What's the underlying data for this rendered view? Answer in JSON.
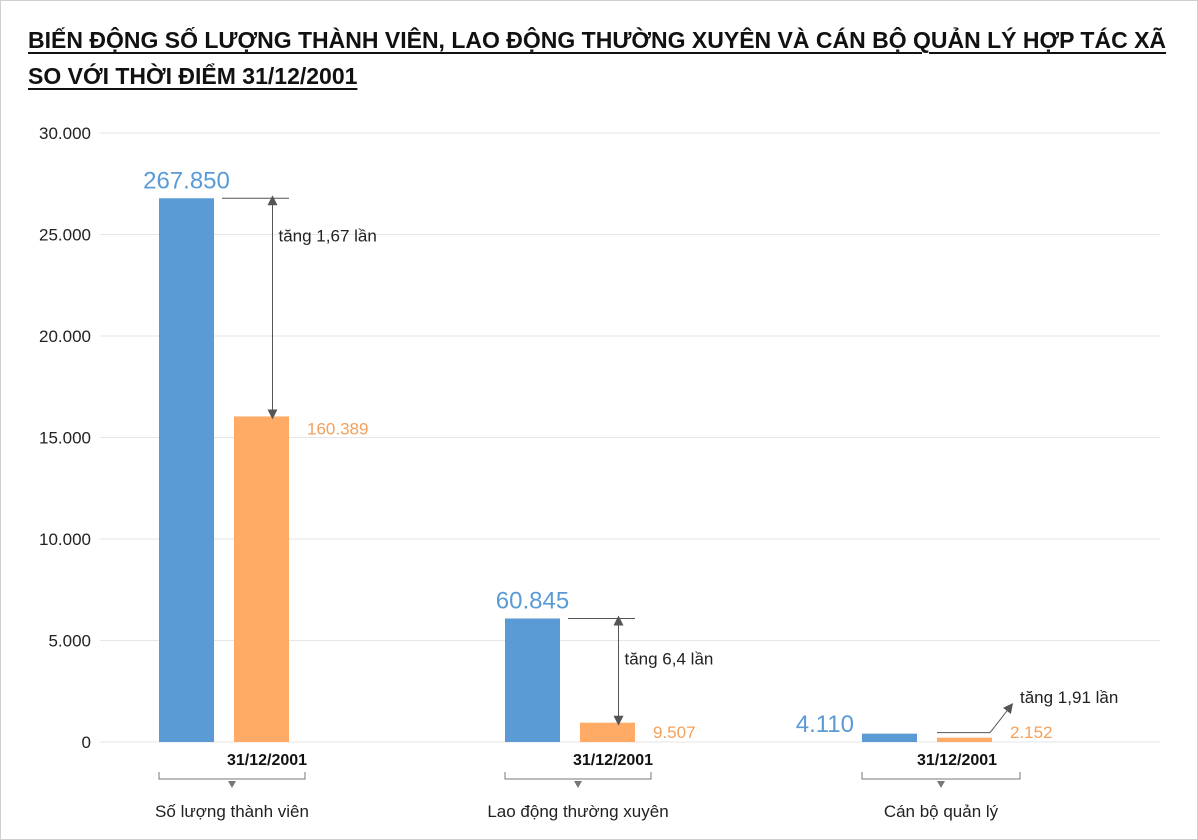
{
  "title_line1": "BIẾN ĐỘNG SỐ LƯỢNG THÀNH VIÊN, LAO ĐỘNG THƯỜNG XUYÊN VÀ CÁN BỘ QUẢN LÝ HỢP TÁC XÃ",
  "title_line2": "SO VỚI THỜI ĐIỂM 31/12/2001",
  "colors": {
    "current": "#5b9bd5",
    "baseline": "#ffab66",
    "arrow": "#555555"
  },
  "chart_data": {
    "type": "bar",
    "ylim": [
      0,
      30000
    ],
    "yticks": [
      0,
      5000,
      10000,
      15000,
      20000,
      25000,
      30000
    ],
    "ytick_labels": [
      "0",
      "5.000",
      "10.000",
      "15.000",
      "20.000",
      "25.000",
      "30.000"
    ],
    "grid": true,
    "groups": [
      {
        "category": "Số lượng thành viên",
        "current_value": 26785.0,
        "current_label": "267.850",
        "baseline_value": 16038.9,
        "baseline_label": "160.389",
        "baseline_date": "31/12/2001",
        "annotation": "tăng 1,67 lần"
      },
      {
        "category": "Lao động thường xuyên",
        "current_value": 6084.5,
        "current_label": "60.845",
        "baseline_value": 950.7,
        "baseline_label": "9.507",
        "baseline_date": "31/12/2001",
        "annotation": "tăng 6,4 lần"
      },
      {
        "category": "Cán bộ quản lý",
        "current_value": 411.0,
        "current_label": "4.110",
        "baseline_value": 215.2,
        "baseline_label": "2.152",
        "baseline_date": "31/12/2001",
        "annotation": "tăng 1,91 lần"
      }
    ]
  }
}
